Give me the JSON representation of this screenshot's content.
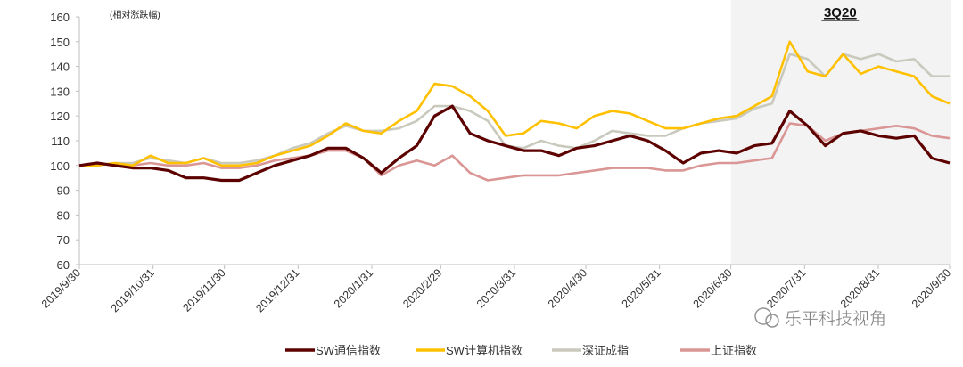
{
  "chart_data": {
    "type": "line",
    "title": "",
    "annotation": "(相对涨跌幅)",
    "highlight_label": "3Q20",
    "highlight_range_days": [
      274,
      366
    ],
    "xlabel": "",
    "ylabel": "",
    "ylim": [
      60,
      160
    ],
    "yticks": [
      60,
      70,
      80,
      90,
      100,
      110,
      120,
      130,
      140,
      150,
      160
    ],
    "xlim_days": [
      0,
      366
    ],
    "xticks": [
      {
        "label": "2019/9/30",
        "day": 0
      },
      {
        "label": "2019/10/31",
        "day": 31
      },
      {
        "label": "2019/11/30",
        "day": 61
      },
      {
        "label": "2019/12/31",
        "day": 92
      },
      {
        "label": "2020/1/31",
        "day": 123
      },
      {
        "label": "2020/2/29",
        "day": 152
      },
      {
        "label": "2020/3/31",
        "day": 183
      },
      {
        "label": "2020/4/30",
        "day": 213
      },
      {
        "label": "2020/5/31",
        "day": 244
      },
      {
        "label": "2020/6/30",
        "day": 274
      },
      {
        "label": "2020/7/31",
        "day": 305
      },
      {
        "label": "2020/8/31",
        "day": 336
      },
      {
        "label": "2020/9/30",
        "day": 366
      }
    ],
    "x_step_days": 7.47,
    "grid": false,
    "legend_position": "bottom",
    "series": [
      {
        "name": "SW通信指数",
        "color": "#5c0000",
        "values": [
          100,
          101,
          100,
          99,
          99,
          98,
          95,
          95,
          94,
          94,
          97,
          100,
          102,
          104,
          107,
          107,
          103,
          97,
          103,
          108,
          120,
          124,
          113,
          110,
          108,
          106,
          106,
          104,
          107,
          108,
          110,
          112,
          110,
          106,
          101,
          105,
          106,
          105,
          108,
          109,
          122,
          116,
          108,
          113,
          114,
          112,
          111,
          112,
          103,
          101
        ]
      },
      {
        "name": "SW计算机指数",
        "color": "#ffc000",
        "values": [
          100,
          100,
          101,
          100,
          104,
          101,
          101,
          103,
          100,
          100,
          101,
          104,
          106,
          108,
          112,
          117,
          114,
          113,
          118,
          122,
          133,
          132,
          128,
          122,
          112,
          113,
          118,
          117,
          115,
          120,
          122,
          121,
          118,
          115,
          115,
          117,
          119,
          120,
          124,
          128,
          150,
          138,
          136,
          145,
          137,
          140,
          138,
          136,
          128,
          125
        ]
      },
      {
        "name": "深证成指",
        "color": "#c9c9bd",
        "values": [
          100,
          100,
          101,
          101,
          103,
          102,
          101,
          103,
          101,
          101,
          102,
          104,
          107,
          109,
          113,
          116,
          114,
          114,
          115,
          118,
          124,
          124,
          122,
          118,
          108,
          107,
          110,
          108,
          107,
          110,
          114,
          113,
          112,
          112,
          115,
          117,
          118,
          119,
          123,
          125,
          145,
          143,
          136,
          145,
          143,
          145,
          142,
          143,
          136,
          136
        ]
      },
      {
        "name": "上证指数",
        "color": "#d99694",
        "values": [
          100,
          101,
          100,
          100,
          101,
          100,
          100,
          101,
          99,
          99,
          100,
          102,
          103,
          104,
          106,
          106,
          103,
          96,
          100,
          102,
          100,
          104,
          97,
          94,
          95,
          96,
          96,
          96,
          97,
          98,
          99,
          99,
          99,
          98,
          98,
          100,
          101,
          101,
          102,
          103,
          117,
          116,
          110,
          113,
          114,
          115,
          116,
          115,
          112,
          111
        ]
      }
    ]
  },
  "watermark": "乐平科技视角"
}
